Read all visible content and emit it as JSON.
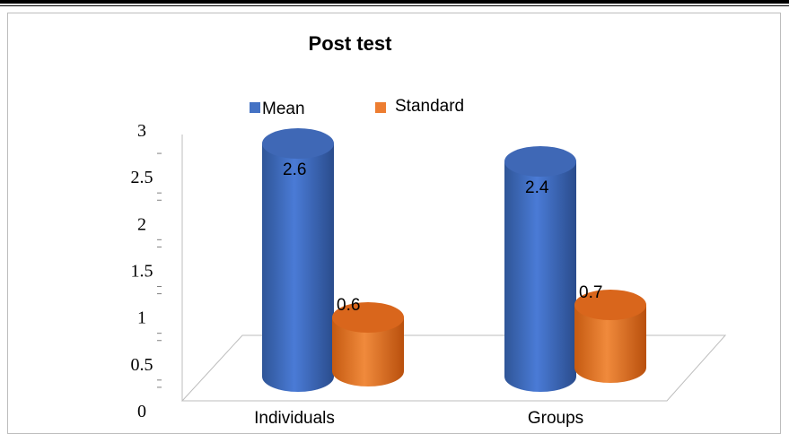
{
  "chart_data": {
    "type": "bar",
    "title": "Post test",
    "categories": [
      "Individuals",
      "Groups"
    ],
    "series": [
      {
        "name": "Mean",
        "values": [
          2.6,
          2.4
        ],
        "color": "#4472c4"
      },
      {
        "name": "Standard",
        "values": [
          0.6,
          0.7
        ],
        "color": "#ed7d31"
      }
    ],
    "y_ticks": [
      "0",
      "0.5",
      "1",
      "1.5",
      "2",
      "2.5",
      "3"
    ],
    "ylim": [
      0,
      3
    ],
    "legend_position": "top-center",
    "grid": false,
    "style": "3d-cylinder"
  }
}
